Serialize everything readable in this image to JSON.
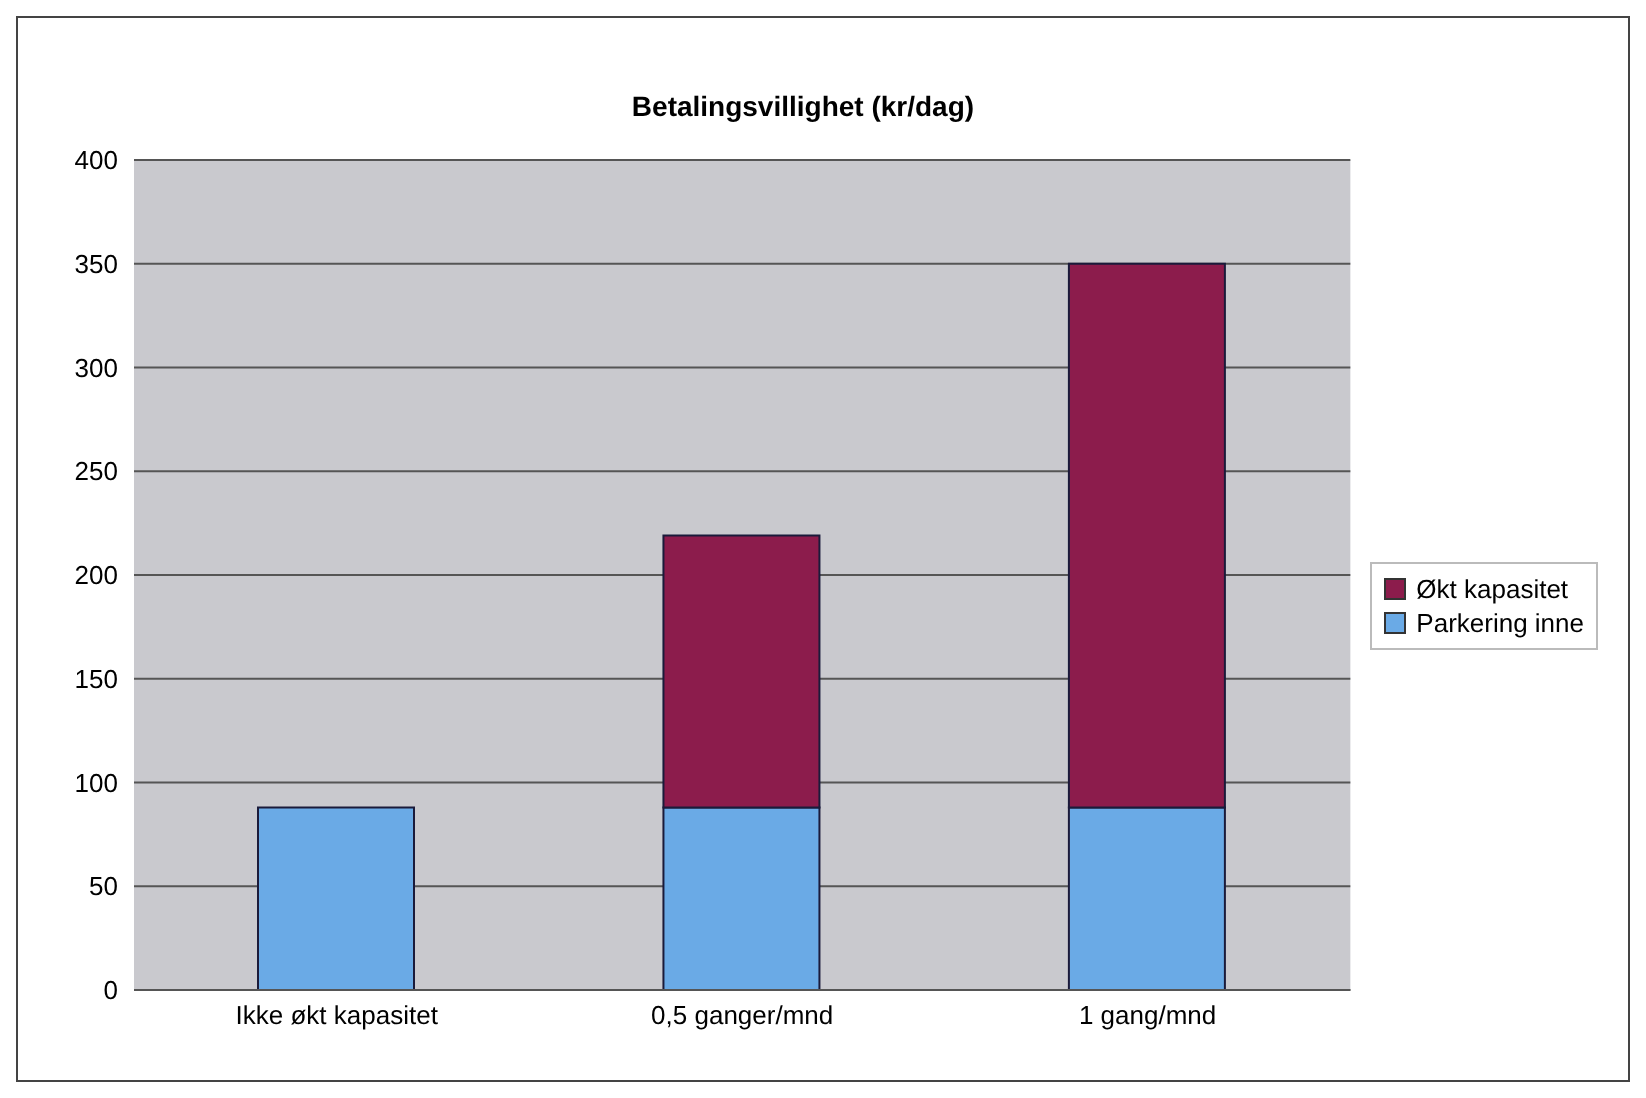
{
  "chart_data": {
    "type": "bar",
    "title": "Betalingsvillighet (kr/dag)",
    "categories": [
      "Ikke økt kapasitet",
      "0,5 ganger/mnd",
      "1 gang/mnd"
    ],
    "stacked": true,
    "series": [
      {
        "name": "Parkering inne",
        "color": "#6aaae6",
        "values": [
          88,
          88,
          88
        ]
      },
      {
        "name": "Økt kapasitet",
        "color": "#8c1c4c",
        "values": [
          null,
          131,
          262
        ]
      }
    ],
    "ylim": [
      0,
      400
    ],
    "yticks": [
      0,
      50,
      100,
      150,
      200,
      250,
      300,
      350,
      400
    ],
    "grid": "y",
    "legend": "right"
  }
}
